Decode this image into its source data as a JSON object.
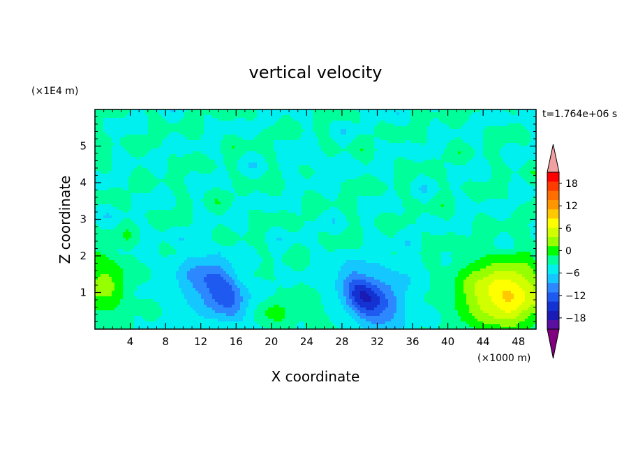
{
  "chart_data": {
    "type": "heatmap",
    "title": "vertical velocity",
    "xlabel": "X coordinate",
    "ylabel": "Z coordinate",
    "x_unit": "(×1000 m)",
    "y_unit": "(×1E4 m)",
    "time_label": "t=1.764e+06 s",
    "xlim": [
      0,
      50
    ],
    "ylim": [
      0,
      6
    ],
    "x_ticks": [
      "4",
      "8",
      "12",
      "16",
      "20",
      "24",
      "28",
      "32",
      "36",
      "40",
      "44",
      "48"
    ],
    "x_tick_values": [
      4,
      8,
      12,
      16,
      20,
      24,
      28,
      32,
      36,
      40,
      44,
      48
    ],
    "y_ticks": [
      "1",
      "2",
      "3",
      "4",
      "5"
    ],
    "y_tick_values": [
      1,
      2,
      3,
      4,
      5
    ],
    "colorbar": {
      "min": -21,
      "max": 21,
      "step": 3,
      "tick_labels": [
        "18",
        "12",
        "6",
        "0",
        "−6",
        "−12",
        "−18"
      ],
      "tick_values": [
        18,
        12,
        6,
        0,
        -6,
        -12,
        -18
      ],
      "colors": [
        "#800080",
        "#5a0fa0",
        "#1a1ab4",
        "#1432d2",
        "#1e5af0",
        "#2d87ff",
        "#14c8ff",
        "#00f0f0",
        "#00ff9b",
        "#00ff00",
        "#96ff00",
        "#d2ff00",
        "#ffff00",
        "#ffc800",
        "#ff9600",
        "#ff6e00",
        "#ff3c00",
        "#ff0000",
        "#f0a0a0"
      ]
    },
    "features": [
      {
        "x": 46.5,
        "z": 1.0,
        "peak": 15
      },
      {
        "x": 1.5,
        "z": 1.2,
        "peak": 7
      },
      {
        "x": 14.0,
        "z": 1.0,
        "peak": -10
      },
      {
        "x": 30.0,
        "z": 0.8,
        "peak": -13
      },
      {
        "x": 20.0,
        "z": 0.4,
        "peak": 4
      }
    ]
  }
}
